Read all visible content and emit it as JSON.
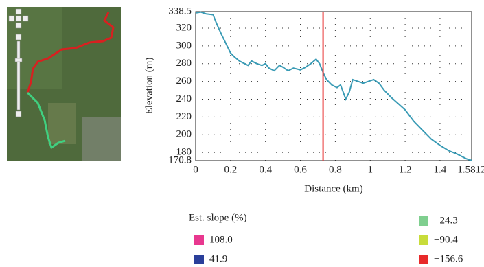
{
  "chart_data": {
    "type": "line",
    "x_label": "Distance (km)",
    "y_label": "Elevation (m)",
    "x": [
      0,
      0.03,
      0.06,
      0.1,
      0.12,
      0.15,
      0.18,
      0.2,
      0.22,
      0.25,
      0.28,
      0.3,
      0.32,
      0.35,
      0.38,
      0.4,
      0.42,
      0.45,
      0.48,
      0.5,
      0.53,
      0.56,
      0.6,
      0.63,
      0.66,
      0.69,
      0.71,
      0.73,
      0.75,
      0.78,
      0.81,
      0.83,
      0.86,
      0.88,
      0.9,
      0.93,
      0.96,
      0.99,
      1.02,
      1.05,
      1.08,
      1.12,
      1.16,
      1.2,
      1.25,
      1.3,
      1.35,
      1.4,
      1.45,
      1.5,
      1.55,
      1.5812
    ],
    "series": [
      {
        "color": "#3a9bb5",
        "values": [
          337,
          338,
          336,
          335,
          325,
          312,
          300,
          292,
          288,
          283,
          280,
          278,
          283,
          280,
          278,
          280,
          275,
          272,
          278,
          276,
          272,
          275,
          273,
          276,
          280,
          285,
          280,
          270,
          262,
          256,
          253,
          256,
          240,
          248,
          262,
          260,
          258,
          260,
          262,
          258,
          250,
          242,
          235,
          228,
          215,
          205,
          195,
          188,
          182,
          178,
          173,
          171
        ]
      }
    ],
    "marker_x": 0.73,
    "marker_color": "#e8393a",
    "xlim": [
      0,
      1.5812
    ],
    "xticks": [
      0,
      0.2,
      0.4,
      0.6,
      0.8,
      1,
      1.2,
      1.4,
      1.5812
    ],
    "ylim": [
      170.8,
      338.5
    ],
    "yticks": [
      170.8,
      180,
      200,
      220,
      240,
      260,
      280,
      300,
      320,
      338.5
    ],
    "grid": true,
    "legend": {
      "title": "Est. slope (%)",
      "items": [
        {
          "label": "108.0",
          "color": "#e8388f"
        },
        {
          "label": "41.9",
          "color": "#2a3f9a"
        },
        {
          "label": "−24.3",
          "color": "#7fcf8f"
        },
        {
          "label": "−90.4",
          "color": "#c8dc3a"
        },
        {
          "label": "−156.6",
          "color": "#e82a2a"
        }
      ]
    }
  }
}
